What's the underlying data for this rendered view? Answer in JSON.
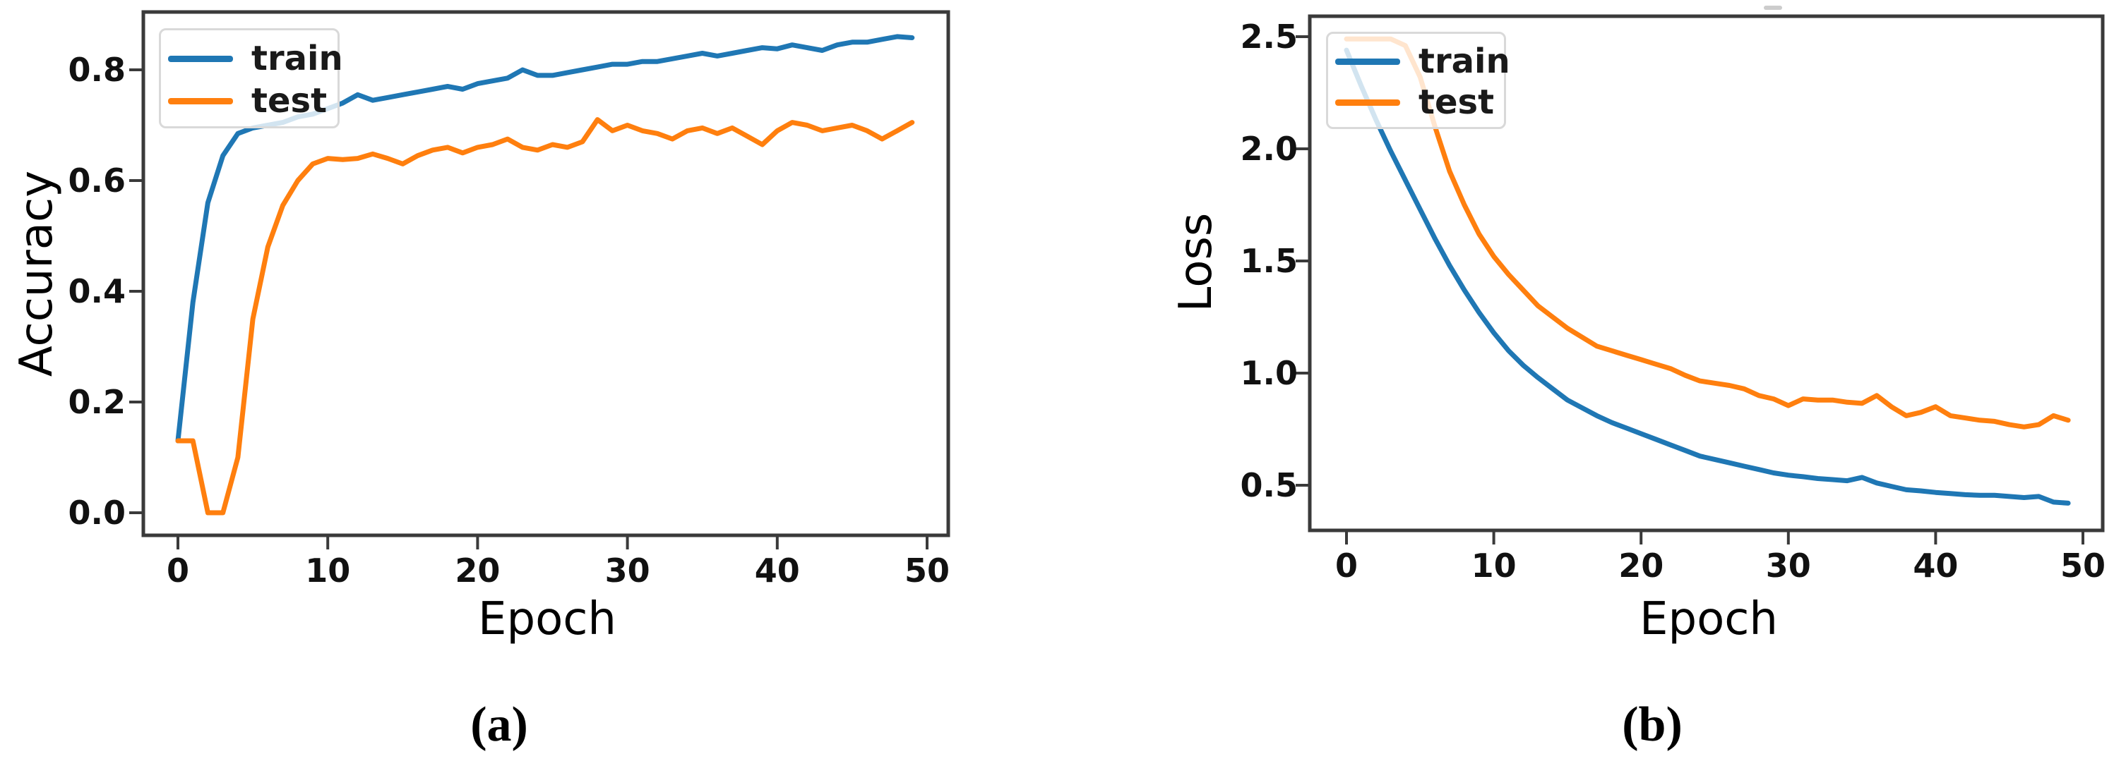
{
  "figure": {
    "description": "Two-panel training curves figure",
    "background": "#ffffff"
  },
  "colors": {
    "train": "#1f77b4",
    "test": "#ff7f0e",
    "spine": "#3a3a3a",
    "tick_text": "#111111",
    "legend_border": "#d9d9d9",
    "stray_mark": "#cccccc"
  },
  "chart_data": [
    {
      "id": "a",
      "type": "line",
      "caption": "(a)",
      "xlabel": "Epoch",
      "ylabel": "Accuracy",
      "grid": false,
      "legend_position": "upper left",
      "legend_entries": [
        "train",
        "test"
      ],
      "x_start": 0,
      "x_step": 1,
      "x_ticks": [
        0,
        10,
        20,
        30,
        40,
        50
      ],
      "y_tick_labels": [
        "0.0",
        "0.2",
        "0.4",
        "0.6",
        "0.8"
      ],
      "y_tick_values": [
        0.0,
        0.2,
        0.4,
        0.6,
        0.8
      ],
      "xlim": [
        -2.3,
        51.4
      ],
      "ylim": [
        -0.04,
        0.9
      ],
      "series": [
        {
          "name": "train",
          "color": "#1f77b4",
          "values": [
            0.13,
            0.38,
            0.56,
            0.645,
            0.685,
            0.695,
            0.7,
            0.705,
            0.715,
            0.72,
            0.73,
            0.74,
            0.755,
            0.745,
            0.75,
            0.755,
            0.76,
            0.765,
            0.77,
            0.765,
            0.775,
            0.78,
            0.785,
            0.8,
            0.79,
            0.79,
            0.795,
            0.8,
            0.805,
            0.81,
            0.81,
            0.815,
            0.815,
            0.82,
            0.825,
            0.83,
            0.825,
            0.83,
            0.835,
            0.84,
            0.838,
            0.845,
            0.84,
            0.835,
            0.845,
            0.85,
            0.85,
            0.855,
            0.86,
            0.858
          ]
        },
        {
          "name": "test",
          "color": "#ff7f0e",
          "values": [
            0.13,
            0.13,
            0.0,
            0.0,
            0.1,
            0.35,
            0.48,
            0.555,
            0.6,
            0.63,
            0.64,
            0.638,
            0.64,
            0.648,
            0.64,
            0.63,
            0.645,
            0.655,
            0.66,
            0.65,
            0.66,
            0.665,
            0.675,
            0.66,
            0.655,
            0.665,
            0.66,
            0.67,
            0.71,
            0.69,
            0.7,
            0.69,
            0.685,
            0.675,
            0.69,
            0.695,
            0.685,
            0.695,
            0.68,
            0.665,
            0.69,
            0.705,
            0.7,
            0.69,
            0.695,
            0.7,
            0.69,
            0.675,
            0.69,
            0.705
          ]
        }
      ]
    },
    {
      "id": "b",
      "type": "line",
      "caption": "(b)",
      "xlabel": "Epoch",
      "ylabel": "Loss",
      "grid": false,
      "legend_position": "upper left",
      "legend_entries": [
        "train",
        "test"
      ],
      "x_start": 0,
      "x_step": 1,
      "x_ticks": [
        0,
        10,
        20,
        30,
        40,
        50
      ],
      "y_tick_labels": [
        "0.5",
        "1.0",
        "1.5",
        "2.0",
        "2.5"
      ],
      "y_tick_values": [
        0.5,
        1.0,
        1.5,
        2.0,
        2.5
      ],
      "xlim": [
        -2.5,
        51.3
      ],
      "ylim": [
        0.3,
        2.59
      ],
      "series": [
        {
          "name": "train",
          "color": "#1f77b4",
          "values": [
            2.44,
            2.28,
            2.13,
            1.99,
            1.86,
            1.73,
            1.6,
            1.48,
            1.37,
            1.27,
            1.18,
            1.1,
            1.035,
            0.98,
            0.93,
            0.88,
            0.845,
            0.81,
            0.78,
            0.755,
            0.73,
            0.705,
            0.68,
            0.655,
            0.63,
            0.615,
            0.6,
            0.585,
            0.57,
            0.555,
            0.545,
            0.538,
            0.53,
            0.525,
            0.52,
            0.535,
            0.51,
            0.495,
            0.48,
            0.475,
            0.468,
            0.463,
            0.458,
            0.455,
            0.455,
            0.45,
            0.445,
            0.45,
            0.425,
            0.42
          ]
        },
        {
          "name": "test",
          "color": "#ff7f0e",
          "values": [
            2.49,
            2.49,
            2.49,
            2.49,
            2.46,
            2.32,
            2.1,
            1.9,
            1.75,
            1.62,
            1.52,
            1.44,
            1.37,
            1.3,
            1.25,
            1.2,
            1.16,
            1.12,
            1.1,
            1.08,
            1.06,
            1.04,
            1.02,
            0.99,
            0.965,
            0.955,
            0.945,
            0.93,
            0.9,
            0.885,
            0.855,
            0.885,
            0.88,
            0.88,
            0.87,
            0.865,
            0.9,
            0.85,
            0.81,
            0.825,
            0.85,
            0.81,
            0.8,
            0.79,
            0.785,
            0.77,
            0.76,
            0.77,
            0.81,
            0.79
          ]
        }
      ]
    }
  ]
}
